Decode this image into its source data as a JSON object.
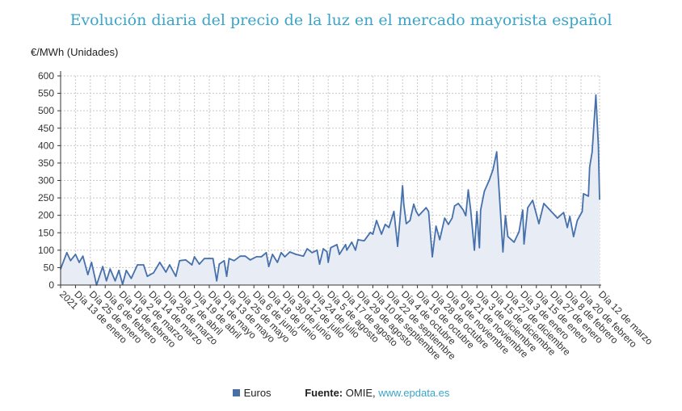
{
  "title": "Evolución diaria del precio de la luz en el mercado mayorista español",
  "legend": {
    "series": "Euros",
    "source_label": "Fuente:",
    "source": "OMIE,",
    "link": "www.epdata.es"
  },
  "colors": {
    "title": "#3aa5c8",
    "line": "#4570ac",
    "fill": "#e8edf5",
    "grid": "#c8c8c8"
  },
  "chart_data": {
    "type": "area",
    "title": "Evolución diaria del precio de la luz en el mercado mayorista español",
    "ylabel": "€/MWh (Unidades)",
    "xlabel": "",
    "ylim": [
      0,
      600
    ],
    "yticks": [
      0,
      50,
      100,
      150,
      200,
      250,
      300,
      350,
      400,
      450,
      500,
      550,
      600
    ],
    "x_unit": "days since 1 Jan 2021",
    "xlim": [
      0,
      435
    ],
    "xtick_days": [
      0,
      12,
      24,
      36,
      48,
      60,
      72,
      84,
      96,
      108,
      120,
      132,
      144,
      156,
      168,
      180,
      192,
      204,
      216,
      228,
      240,
      252,
      264,
      276,
      288,
      300,
      312,
      324,
      336,
      348,
      360,
      372,
      384,
      396,
      408,
      420,
      435
    ],
    "xtick_labels": [
      "2021",
      "Día 13 de enero",
      "Día 25 de enero",
      "Día 6 de febrero",
      "Día 18 de febrero",
      "Día 2 de marzo",
      "Día 14 de marzo",
      "Día 26 de marzo",
      "Día 7 de abril",
      "Día 19 de abril",
      "Día 1 de mayo",
      "Día 13 de mayo",
      "Día 25 de mayo",
      "Día 6 de junio",
      "Día 18 de junio",
      "Día 30 de junio",
      "Día 12 de julio",
      "Día 24 de julio",
      "Día 5 de agosto",
      "Día 17 de agosto",
      "Día 29 de agosto",
      "Día 10 de septiembre",
      "Día 22 de septiembre",
      "Día 4 de octubre",
      "Día 16 de octubre",
      "Día 28 de octubre",
      "Día 9 de noviembre",
      "Día 21 de noviembre",
      "Día 3 de diciembre",
      "Día 15 de diciembre",
      "Día 27 de diciembre",
      "Día 3 de enero",
      "Día 15 de enero",
      "Día 27 de enero",
      "Día 8 de febrero",
      "Día 20 de febrero",
      "Día 12 de marzo"
    ],
    "grid": true,
    "legend_position": "bottom-center",
    "series": [
      {
        "name": "Euros",
        "x": [
          0,
          5,
          8,
          12,
          15,
          18,
          22,
          25,
          29,
          34,
          37,
          40,
          44,
          47,
          50,
          53,
          57,
          62,
          67,
          70,
          75,
          80,
          85,
          88,
          93,
          96,
          101,
          106,
          108,
          112,
          116,
          123,
          126,
          128,
          132,
          134,
          136,
          140,
          145,
          149,
          153,
          158,
          162,
          166,
          168,
          171,
          175,
          178,
          181,
          185,
          190,
          196,
          199,
          203,
          207,
          209,
          212,
          215,
          216,
          218,
          223,
          225,
          230,
          231,
          235,
          238,
          240,
          245,
          250,
          252,
          255,
          259,
          262,
          265,
          269,
          272,
          274,
          276,
          277,
          279,
          282,
          285,
          287,
          289,
          295,
          297,
          300,
          303,
          306,
          310,
          313,
          316,
          318,
          321,
          325,
          327,
          329,
          331,
          334,
          336,
          338,
          339,
          342,
          346,
          349,
          352,
          357,
          359,
          361,
          366,
          370,
          373,
          374,
          377,
          381,
          386,
          390,
          396,
          401,
          406,
          409,
          411,
          414,
          417,
          421,
          422,
          426,
          427,
          429,
          432,
          434,
          435
        ],
        "values": [
          46,
          93,
          70,
          88,
          65,
          83,
          30,
          65,
          0,
          53,
          12,
          46,
          12,
          42,
          2,
          42,
          19,
          58,
          58,
          25,
          35,
          65,
          37,
          58,
          25,
          70,
          72,
          58,
          81,
          60,
          76,
          76,
          12,
          60,
          70,
          25,
          76,
          70,
          83,
          83,
          72,
          81,
          81,
          93,
          53,
          88,
          65,
          93,
          81,
          95,
          88,
          83,
          104,
          93,
          100,
          60,
          104,
          95,
          65,
          107,
          116,
          88,
          116,
          100,
          123,
          100,
          130,
          127,
          151,
          146,
          185,
          146,
          174,
          165,
          211,
          111,
          192,
          285,
          232,
          176,
          185,
          232,
          211,
          199,
          222,
          211,
          81,
          169,
          130,
          192,
          174,
          192,
          227,
          234,
          215,
          199,
          273,
          215,
          100,
          211,
          107,
          215,
          269,
          301,
          331,
          382,
          95,
          199,
          139,
          123,
          153,
          215,
          118,
          222,
          243,
          176,
          234,
          211,
          192,
          208,
          165,
          197,
          139,
          185,
          211,
          262,
          255,
          338,
          382,
          545,
          401,
          246
        ]
      }
    ]
  }
}
